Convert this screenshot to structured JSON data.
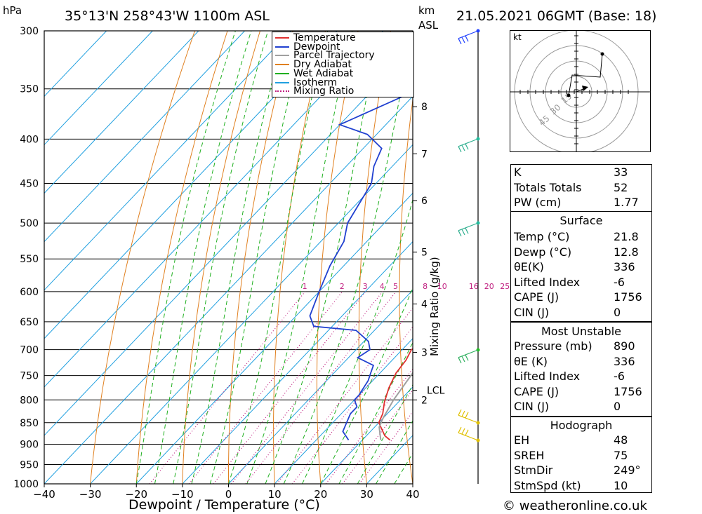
{
  "header": {
    "hpa_label": "hPa",
    "location": "35°13'N  258°43'W  1100m  ASL",
    "km_label": "km",
    "asl_label": "ASL",
    "datetime": "21.05.2021  06GMT  (Base: 18)"
  },
  "footer": {
    "copyright": "© weatheronline.co.uk"
  },
  "legend": [
    {
      "label": "Temperature",
      "color": "#e03030",
      "style": "solid"
    },
    {
      "label": "Dewpoint",
      "color": "#2040d0",
      "style": "solid"
    },
    {
      "label": "Parcel Trajectory",
      "color": "#a0a0a0",
      "style": "solid"
    },
    {
      "label": "Dry Adiabat",
      "color": "#e08020",
      "style": "solid"
    },
    {
      "label": "Wet Adiabat",
      "color": "#20b020",
      "style": "solid"
    },
    {
      "label": "Isotherm",
      "color": "#20a0e0",
      "style": "solid"
    },
    {
      "label": "Mixing Ratio",
      "color": "#c02080",
      "style": "dotted"
    }
  ],
  "chart_data": {
    "type": "line",
    "xlabel": "Dewpoint / Temperature (°C)",
    "ylabel": "hPa",
    "y_right_label": "Mixing Ratio (g/kg)",
    "x_ticks": [
      -40,
      -30,
      -20,
      -10,
      0,
      10,
      20,
      30,
      40
    ],
    "p_ticks": [
      300,
      350,
      400,
      450,
      500,
      550,
      600,
      650,
      700,
      750,
      800,
      850,
      900,
      950,
      1000
    ],
    "xlim": [
      -40,
      40
    ],
    "plim": [
      1000,
      300
    ],
    "km_ticks": [
      {
        "label": "8",
        "p": 367
      },
      {
        "label": "7",
        "p": 416
      },
      {
        "label": "6",
        "p": 471
      },
      {
        "label": "5",
        "p": 540
      },
      {
        "label": "4",
        "p": 620
      },
      {
        "label": "3",
        "p": 705
      },
      {
        "label": "2",
        "p": 800
      }
    ],
    "lcl": {
      "label": "LCL",
      "p": 780
    },
    "mixing_ratio_labels": [
      "1",
      "2",
      "3",
      "4",
      "5",
      "8",
      "10",
      "16",
      "20",
      "25"
    ],
    "series": [
      {
        "name": "Temperature",
        "color": "#e03030",
        "points": [
          [
            26,
            890
          ],
          [
            24,
            880
          ],
          [
            20,
            850
          ],
          [
            19,
            830
          ],
          [
            17,
            805
          ],
          [
            16,
            790
          ],
          [
            15,
            775
          ],
          [
            13.5,
            745
          ],
          [
            13,
            720
          ],
          [
            12,
            700
          ],
          [
            13.5,
            680
          ],
          [
            16,
            660
          ],
          [
            17,
            655
          ],
          [
            15,
            630
          ],
          [
            13,
            605
          ],
          [
            10,
            575
          ],
          [
            6,
            550
          ],
          [
            2,
            525
          ],
          [
            -1,
            500
          ],
          [
            -3,
            485
          ],
          [
            -7,
            460
          ],
          [
            -8,
            450
          ],
          [
            -11,
            425
          ],
          [
            -13,
            400
          ],
          [
            -14,
            390
          ],
          [
            -16,
            380
          ],
          [
            -18,
            365
          ],
          [
            -21,
            345
          ],
          [
            -23,
            335
          ],
          [
            -24,
            320
          ],
          [
            -26,
            300
          ]
        ]
      },
      {
        "name": "Dewpoint",
        "color": "#2040d0",
        "points": [
          [
            17,
            890
          ],
          [
            14,
            870
          ],
          [
            13,
            850
          ],
          [
            12,
            830
          ],
          [
            12,
            815
          ],
          [
            10,
            800
          ],
          [
            10,
            790
          ],
          [
            9,
            760
          ],
          [
            8,
            745
          ],
          [
            7,
            730
          ],
          [
            2,
            715
          ],
          [
            3,
            700
          ],
          [
            1,
            685
          ],
          [
            -4,
            665
          ],
          [
            -14,
            658
          ],
          [
            -17,
            640
          ],
          [
            -20,
            600
          ],
          [
            -23,
            560
          ],
          [
            -25,
            525
          ],
          [
            -28,
            500
          ],
          [
            -31,
            450
          ],
          [
            -34,
            430
          ],
          [
            -36,
            410
          ],
          [
            -42,
            395
          ],
          [
            -50,
            385
          ],
          [
            -37,
            340
          ],
          [
            -32,
            320
          ],
          [
            -41,
            300
          ]
        ]
      },
      {
        "name": "Parcel Trajectory",
        "color": "#a0a0a0",
        "points": [
          [
            24,
            890
          ],
          [
            21,
            860
          ],
          [
            20,
            840
          ],
          [
            18.5,
            800
          ],
          [
            18,
            780
          ],
          [
            17,
            740
          ],
          [
            16,
            700
          ],
          [
            15,
            660
          ],
          [
            13,
            620
          ],
          [
            10.5,
            580
          ],
          [
            8,
            550
          ],
          [
            5,
            520
          ],
          [
            2,
            490
          ],
          [
            -1,
            460
          ],
          [
            -4,
            430
          ],
          [
            -7,
            400
          ],
          [
            -10,
            370
          ],
          [
            -14,
            340
          ],
          [
            -17,
            300
          ]
        ]
      }
    ]
  },
  "hodograph": {
    "unit_label": "kt",
    "ring_labels": [
      "15",
      "30",
      "45"
    ]
  },
  "indices": {
    "k_label": "K",
    "k_value": "33",
    "tt_label": "Totals Totals",
    "tt_value": "52",
    "pw_label": "PW (cm)",
    "pw_value": "1.77",
    "surface_title": "Surface",
    "s_temp_label": "Temp (°C)",
    "s_temp_value": "21.8",
    "s_dewp_label": "Dewp (°C)",
    "s_dewp_value": "12.8",
    "s_theta_label": "θE(K)",
    "s_theta_value": "336",
    "s_li_label": "Lifted Index",
    "s_li_value": "-6",
    "s_cape_label": "CAPE (J)",
    "s_cape_value": "1756",
    "s_cin_label": "CIN (J)",
    "s_cin_value": "0",
    "mu_title": "Most Unstable",
    "mu_press_label": "Pressure (mb)",
    "mu_press_value": "890",
    "mu_theta_label": "θE (K)",
    "mu_theta_value": "336",
    "mu_li_label": "Lifted Index",
    "mu_li_value": "-6",
    "mu_cape_label": "CAPE (J)",
    "mu_cape_value": "1756",
    "mu_cin_label": "CIN (J)",
    "mu_cin_value": "0",
    "hodo_title": "Hodograph",
    "eh_label": "EH",
    "eh_value": "48",
    "sreh_label": "SREH",
    "sreh_value": "75",
    "stmdir_label": "StmDir",
    "stmdir_value": "249°",
    "stmspd_label": "StmSpd (kt)",
    "stmspd_value": "10"
  }
}
